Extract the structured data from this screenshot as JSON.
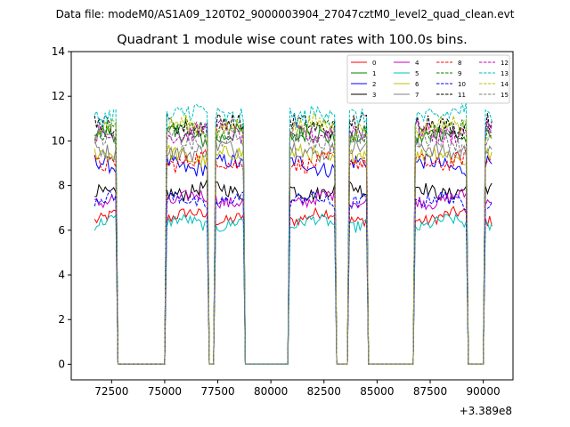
{
  "figure": {
    "suptitle": "Data file: modeM0/AS1A09_120T02_9000003904_27047cztM0_level2_quad_clean.evt",
    "title": "Quadrant 1 module wise count rates with 100.0s bins."
  },
  "chart_data": {
    "type": "line",
    "title": "Quadrant 1 module wise count rates with 100.0s bins.",
    "xlabel": "",
    "ylabel": "",
    "x_offset_label": "+3.389e8",
    "xlim": [
      70600,
      91400
    ],
    "ylim": [
      -0.7,
      14
    ],
    "xticks": [
      72500,
      75000,
      77500,
      80000,
      82500,
      85000,
      87500,
      90000
    ],
    "xtick_labels": [
      "72500",
      "75000",
      "77500",
      "80000",
      "82500",
      "85000",
      "87500",
      "90000"
    ],
    "yticks": [
      0,
      2,
      4,
      6,
      8,
      10,
      12,
      14
    ],
    "ytick_labels": [
      "0",
      "2",
      "4",
      "6",
      "8",
      "10",
      "12",
      "14"
    ],
    "grid": false,
    "legend_position": "top-right",
    "bin_seconds": 100,
    "x_start": 71700,
    "x_end": 90400,
    "on_intervals": [
      [
        71700,
        72700
      ],
      [
        75100,
        77000
      ],
      [
        77400,
        78700
      ],
      [
        80900,
        83000
      ],
      [
        83700,
        84500
      ],
      [
        86800,
        89200
      ],
      [
        90100,
        90400
      ]
    ],
    "series": [
      {
        "name": "0",
        "level": 6.6,
        "color": "#ff0000",
        "dash": "solid"
      },
      {
        "name": "1",
        "level": 10.2,
        "color": "#008000",
        "dash": "solid"
      },
      {
        "name": "2",
        "level": 8.9,
        "color": "#0000ff",
        "dash": "solid"
      },
      {
        "name": "3",
        "level": 7.8,
        "color": "#000000",
        "dash": "solid"
      },
      {
        "name": "4",
        "level": 7.4,
        "color": "#bf00bf",
        "dash": "solid"
      },
      {
        "name": "5",
        "level": 6.3,
        "color": "#00bfbf",
        "dash": "solid"
      },
      {
        "name": "6",
        "level": 9.3,
        "color": "#bfbf00",
        "dash": "solid"
      },
      {
        "name": "7",
        "level": 9.6,
        "color": "#808080",
        "dash": "solid"
      },
      {
        "name": "8",
        "level": 9.1,
        "color": "#ff0000",
        "dash": "dashed"
      },
      {
        "name": "9",
        "level": 10.5,
        "color": "#008000",
        "dash": "dashed"
      },
      {
        "name": "10",
        "level": 7.3,
        "color": "#0000ff",
        "dash": "dashed"
      },
      {
        "name": "11",
        "level": 10.7,
        "color": "#000000",
        "dash": "dashed"
      },
      {
        "name": "12",
        "level": 10.4,
        "color": "#bf00bf",
        "dash": "dashed"
      },
      {
        "name": "13",
        "level": 11.2,
        "color": "#00bfbf",
        "dash": "dashed"
      },
      {
        "name": "14",
        "level": 10.6,
        "color": "#bfbf00",
        "dash": "dashed"
      },
      {
        "name": "15",
        "level": 10.0,
        "color": "#808080",
        "dash": "dashed"
      }
    ]
  }
}
